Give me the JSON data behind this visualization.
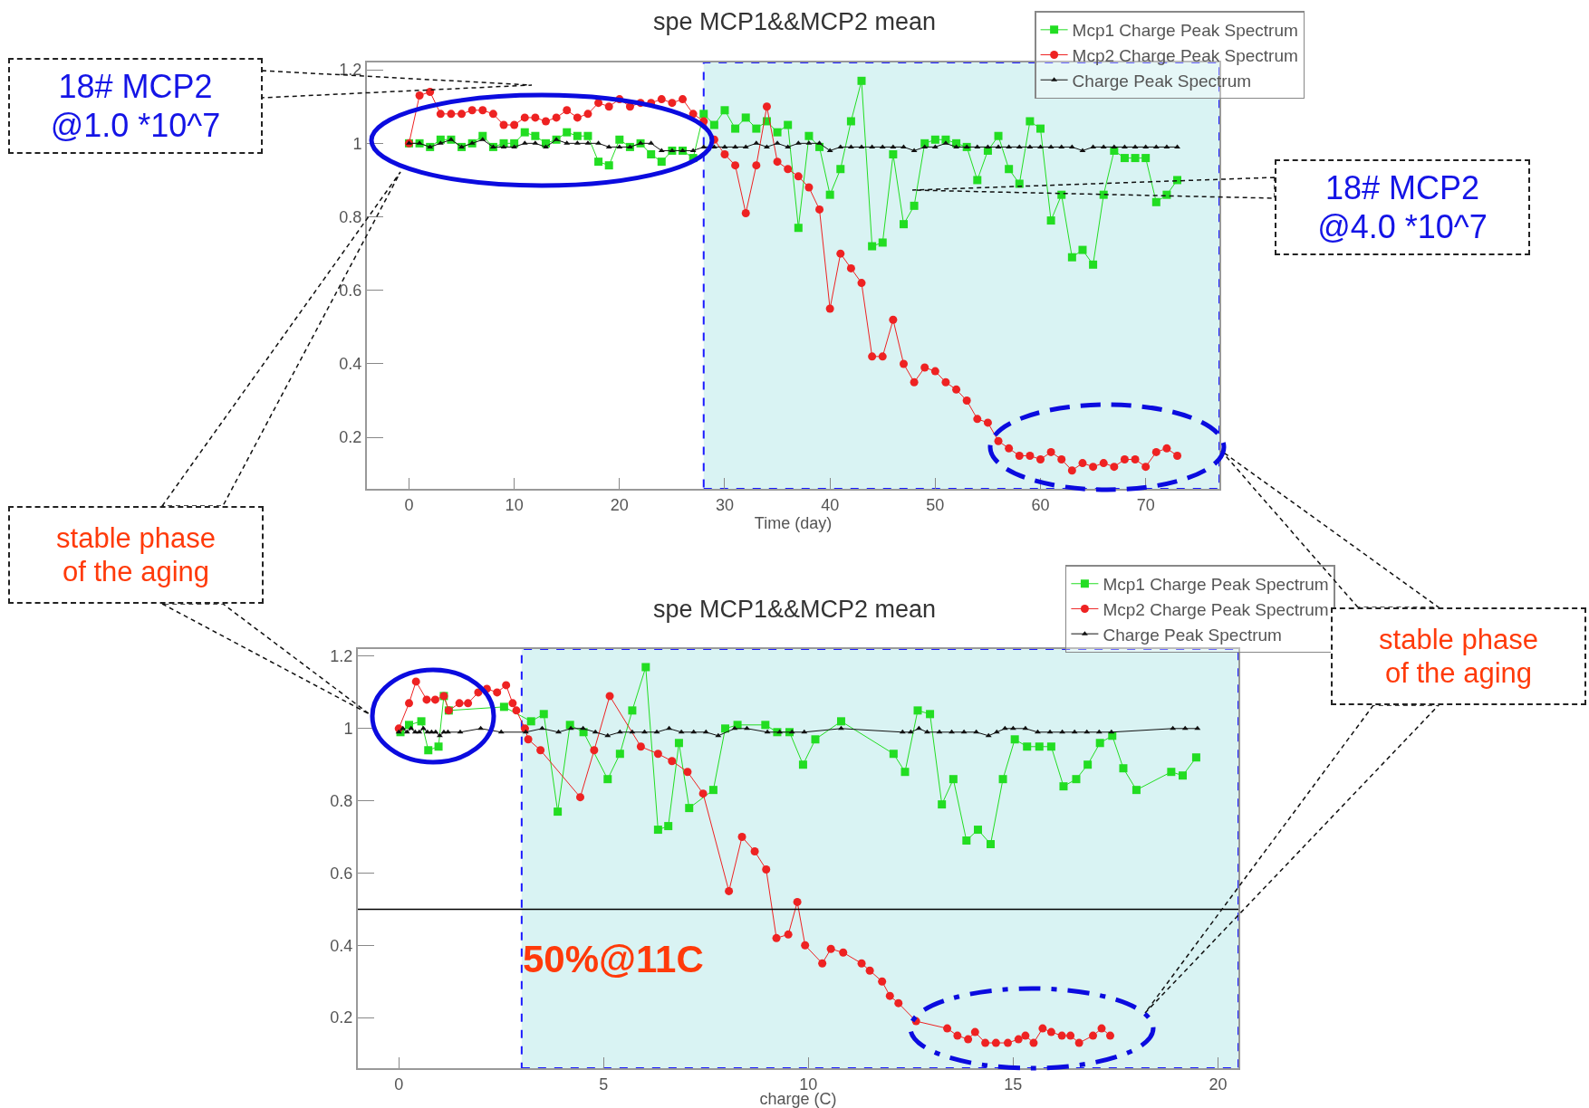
{
  "chart_data": [
    {
      "type": "line",
      "title": "spe MCP1&&MCP2 mean",
      "xlabel": "Time (day)",
      "legend": "top right",
      "grid": false,
      "xlim": [
        -4,
        77
      ],
      "xticks": [
        0,
        10,
        20,
        30,
        40,
        50,
        60,
        70
      ],
      "ylim": [
        0.06,
        1.22
      ],
      "yticks": [
        0.2,
        0.4,
        0.6,
        0.8,
        1,
        1.2
      ],
      "bands": [
        {
          "axis": "x",
          "from": 28,
          "to": 77,
          "color": "#d9f3f3"
        }
      ],
      "annotations": [
        "18# MCP2\n@1.0 *10^7",
        "18# MCP2\n@4.0 *10^7",
        "stable phase\nof the aging"
      ],
      "series": [
        {
          "name": "Mcp1 Charge Peak Spectrum",
          "color": "#22dd22",
          "marker": "square",
          "x": [
            0,
            1,
            2,
            3,
            4,
            5,
            6,
            7,
            8,
            9,
            10,
            11,
            12,
            13,
            14,
            15,
            16,
            17,
            18,
            19,
            20,
            21,
            22,
            23,
            24,
            25,
            26,
            27,
            28,
            29,
            30,
            31,
            32,
            33,
            34,
            35,
            36,
            37,
            38,
            39,
            40,
            41,
            42,
            43,
            44,
            45,
            46,
            47,
            48,
            49,
            50,
            51,
            52,
            53,
            54,
            55,
            56,
            57,
            58,
            59,
            60,
            61,
            62,
            63,
            64,
            65,
            66,
            67,
            68,
            69,
            70,
            71,
            72,
            73
          ],
          "values": [
            1.0,
            1.0,
            0.99,
            1.01,
            1.01,
            0.99,
            1.0,
            1.02,
            0.99,
            1.0,
            1.0,
            1.03,
            1.02,
            1.0,
            1.01,
            1.03,
            1.02,
            1.02,
            0.95,
            0.94,
            1.01,
            0.99,
            1.0,
            0.97,
            0.95,
            0.98,
            0.98,
            0.96,
            1.08,
            1.05,
            1.09,
            1.04,
            1.07,
            1.04,
            1.06,
            1.03,
            1.05,
            0.77,
            1.02,
            0.99,
            0.86,
            0.93,
            1.06,
            1.17,
            0.72,
            0.73,
            0.97,
            0.78,
            0.83,
            1.0,
            1.01,
            1.01,
            1.0,
            0.99,
            0.9,
            0.98,
            1.02,
            0.93,
            0.89,
            1.06,
            1.04,
            0.79,
            0.86,
            0.69,
            0.71,
            0.67,
            0.86,
            0.98,
            0.96,
            0.96,
            0.96,
            0.84,
            0.86,
            0.9
          ]
        },
        {
          "name": "Mcp2 Charge Peak Spectrum",
          "color": "#ee2222",
          "marker": "circle",
          "x": [
            0,
            1,
            2,
            3,
            4,
            5,
            6,
            7,
            8,
            9,
            10,
            11,
            12,
            13,
            14,
            15,
            16,
            17,
            18,
            19,
            20,
            21,
            22,
            23,
            24,
            25,
            26,
            27,
            28,
            29,
            30,
            31,
            32,
            33,
            34,
            35,
            36,
            37,
            38,
            39,
            40,
            41,
            42,
            43,
            44,
            45,
            46,
            47,
            48,
            49,
            50,
            51,
            52,
            53,
            54,
            55,
            56,
            57,
            58,
            59,
            60,
            61,
            62,
            63,
            64,
            65,
            66,
            67,
            68,
            69,
            70,
            71,
            72,
            73
          ],
          "values": [
            1.0,
            1.13,
            1.14,
            1.08,
            1.08,
            1.08,
            1.09,
            1.09,
            1.08,
            1.05,
            1.05,
            1.07,
            1.07,
            1.06,
            1.07,
            1.09,
            1.07,
            1.08,
            1.11,
            1.1,
            1.12,
            1.1,
            1.11,
            1.11,
            1.12,
            1.11,
            1.12,
            1.08,
            1.06,
            1.01,
            0.97,
            0.94,
            0.81,
            0.94,
            1.1,
            0.95,
            0.93,
            0.91,
            0.88,
            0.82,
            0.55,
            0.7,
            0.66,
            0.62,
            0.42,
            0.42,
            0.52,
            0.4,
            0.35,
            0.39,
            0.38,
            0.35,
            0.33,
            0.3,
            0.25,
            0.24,
            0.19,
            0.17,
            0.15,
            0.15,
            0.14,
            0.16,
            0.14,
            0.11,
            0.13,
            0.12,
            0.13,
            0.12,
            0.14,
            0.14,
            0.12,
            0.16,
            0.17,
            0.15
          ]
        },
        {
          "name": "Charge Peak Spectrum",
          "color": "#111111",
          "marker": "triangle",
          "x": [
            0,
            1,
            2,
            3,
            4,
            5,
            6,
            7,
            8,
            9,
            10,
            11,
            12,
            13,
            14,
            15,
            16,
            17,
            18,
            19,
            20,
            21,
            22,
            23,
            24,
            25,
            26,
            27,
            28,
            29,
            30,
            31,
            32,
            33,
            34,
            35,
            36,
            37,
            38,
            39,
            40,
            41,
            42,
            43,
            44,
            45,
            46,
            47,
            48,
            49,
            50,
            51,
            52,
            53,
            54,
            55,
            56,
            57,
            58,
            59,
            60,
            61,
            62,
            63,
            64,
            65,
            66,
            67,
            68,
            69,
            70,
            71,
            72,
            73
          ],
          "values": [
            1.0,
            1.0,
            0.99,
            1.0,
            1.01,
            0.99,
            1.0,
            1.01,
            0.99,
            0.99,
            0.99,
            1.0,
            1.0,
            0.99,
            1.01,
            1.0,
            1.0,
            1.0,
            1.0,
            0.99,
            0.99,
            0.99,
            1.0,
            1.0,
            0.98,
            0.98,
            0.98,
            0.98,
            0.99,
            0.99,
            0.99,
            0.99,
            0.99,
            1.0,
            0.99,
            1.0,
            0.99,
            1.0,
            1.0,
            1.0,
            0.98,
            0.99,
            0.99,
            0.99,
            0.99,
            0.99,
            0.99,
            0.99,
            0.98,
            0.99,
            0.99,
            1.0,
            0.99,
            0.99,
            0.99,
            0.99,
            0.99,
            0.99,
            0.99,
            0.99,
            0.99,
            0.99,
            0.99,
            0.99,
            0.98,
            0.99,
            0.99,
            0.99,
            0.99,
            0.99,
            0.99,
            0.99,
            0.99,
            0.99
          ]
        }
      ]
    },
    {
      "type": "line",
      "title": "spe MCP1&&MCP2 mean",
      "xlabel": "charge (C)",
      "legend": "top right",
      "grid": false,
      "xlim": [
        -1,
        20.5
      ],
      "xticks": [
        0,
        5,
        10,
        15,
        20
      ],
      "ylim": [
        0.06,
        1.22
      ],
      "yticks": [
        0.2,
        0.4,
        0.6,
        0.8,
        1,
        1.2
      ],
      "bands": [
        {
          "axis": "x",
          "from": 3,
          "to": 20.5,
          "color": "#d9f3f3"
        }
      ],
      "ref_lines": [
        {
          "axis": "y",
          "value": 0.5,
          "label": "50%@11C",
          "color": "#000000"
        }
      ],
      "annotations": [
        "stable phase\nof the aging"
      ],
      "series": [
        {
          "name": "Mcp1 Charge Peak Spectrum",
          "color": "#22dd22",
          "marker": "square",
          "x": [
            0.04,
            0.25,
            0.55,
            0.72,
            0.97,
            1.1,
            1.22,
            2.57,
            3.23,
            3.54,
            3.88,
            4.18,
            4.51,
            5.1,
            5.4,
            5.7,
            6.03,
            6.33,
            6.58,
            6.84,
            7.09,
            7.68,
            7.97,
            8.27,
            8.95,
            9.24,
            9.54,
            9.87,
            10.17,
            10.8,
            12.08,
            12.36,
            12.67,
            12.97,
            13.26,
            13.54,
            13.86,
            14.14,
            14.45,
            14.75,
            15.04,
            15.34,
            15.64,
            15.93,
            16.23,
            16.54,
            16.82,
            17.12,
            17.42,
            17.69,
            18.01,
            18.86,
            19.14,
            19.47
          ],
          "values": [
            0.99,
            1.01,
            1.02,
            0.94,
            0.95,
            1.09,
            1.05,
            1.06,
            1.02,
            1.04,
            0.77,
            1.01,
            0.99,
            0.86,
            0.93,
            1.05,
            1.17,
            0.72,
            0.73,
            0.96,
            0.78,
            0.83,
            1.0,
            1.01,
            1.01,
            0.99,
            0.99,
            0.9,
            0.97,
            1.02,
            0.93,
            0.88,
            1.05,
            1.04,
            0.79,
            0.86,
            0.69,
            0.72,
            0.68,
            0.86,
            0.97,
            0.95,
            0.95,
            0.95,
            0.84,
            0.86,
            0.9,
            0.96,
            0.98,
            0.89,
            0.83,
            0.88,
            0.87,
            0.92
          ]
        },
        {
          "name": "Mcp2 Charge Peak Spectrum",
          "color": "#ee2222",
          "marker": "circle",
          "x": [
            0,
            0.25,
            0.42,
            0.68,
            0.89,
            1.1,
            1.22,
            1.48,
            1.69,
            1.94,
            2.15,
            2.4,
            2.62,
            2.78,
            2.87,
            3.08,
            3.16,
            3.46,
            4.43,
            4.77,
            5.15,
            5.91,
            6.33,
            6.67,
            7.05,
            7.43,
            8.06,
            8.38,
            8.69,
            8.97,
            9.22,
            9.51,
            9.73,
            9.92,
            10.34,
            10.55,
            10.85,
            11.3,
            11.5,
            11.8,
            11.99,
            12.2,
            12.63,
            13.39,
            13.64,
            13.9,
            14.07,
            14.32,
            14.58,
            14.87,
            15.13,
            15.3,
            15.5,
            15.72,
            15.93,
            16.19,
            16.4,
            16.61,
            16.95,
            17.16,
            17.37
          ],
          "values": [
            1.0,
            1.07,
            1.13,
            1.08,
            1.08,
            1.09,
            1.05,
            1.07,
            1.07,
            1.1,
            1.11,
            1.1,
            1.12,
            1.07,
            1.05,
            1.0,
            0.97,
            0.94,
            0.81,
            0.94,
            1.09,
            0.95,
            0.93,
            0.91,
            0.88,
            0.82,
            0.55,
            0.7,
            0.66,
            0.61,
            0.42,
            0.43,
            0.52,
            0.4,
            0.35,
            0.39,
            0.38,
            0.35,
            0.33,
            0.3,
            0.26,
            0.24,
            0.19,
            0.17,
            0.15,
            0.14,
            0.16,
            0.13,
            0.13,
            0.13,
            0.14,
            0.15,
            0.13,
            0.17,
            0.16,
            0.15,
            0.15,
            0.13,
            0.15,
            0.17,
            0.15
          ]
        },
        {
          "name": "Charge Peak Spectrum",
          "color": "#111111",
          "marker": "triangle",
          "x": [
            0,
            0.1,
            0.2,
            0.3,
            0.4,
            0.5,
            0.6,
            0.7,
            0.8,
            0.9,
            1.0,
            1.1,
            1.2,
            1.5,
            2.0,
            2.5,
            3.1,
            3.5,
            3.9,
            4.2,
            4.5,
            4.8,
            5.1,
            5.4,
            5.7,
            6.0,
            6.3,
            6.6,
            6.9,
            7.2,
            7.5,
            7.8,
            8.2,
            8.5,
            9.0,
            9.3,
            9.6,
            9.9,
            10.8,
            12.3,
            12.5,
            12.7,
            12.9,
            13.2,
            13.5,
            13.8,
            14.1,
            14.4,
            14.6,
            14.8,
            15.0,
            15.3,
            15.6,
            15.9,
            16.2,
            16.5,
            16.8,
            17.1,
            17.4,
            18.9,
            19.2,
            19.5
          ],
          "values": [
            0.99,
            1.0,
            0.99,
            1.0,
            0.99,
            0.99,
            1.0,
            0.99,
            0.99,
            0.99,
            0.98,
            0.99,
            0.99,
            0.99,
            1.0,
            0.99,
            0.99,
            1.0,
            0.99,
            1.0,
            1.0,
            0.99,
            0.98,
            0.99,
            0.99,
            0.99,
            0.99,
            1.0,
            0.99,
            0.99,
            0.99,
            0.98,
            1.0,
            1.0,
            0.99,
            0.99,
            0.99,
            0.99,
            1.0,
            0.99,
            0.99,
            1.0,
            0.99,
            0.99,
            0.99,
            0.99,
            0.99,
            0.98,
            0.99,
            1.0,
            1.0,
            1.0,
            0.99,
            0.99,
            0.99,
            0.99,
            0.99,
            0.99,
            0.99,
            1.0,
            1.0,
            1.0
          ]
        }
      ]
    }
  ]
}
